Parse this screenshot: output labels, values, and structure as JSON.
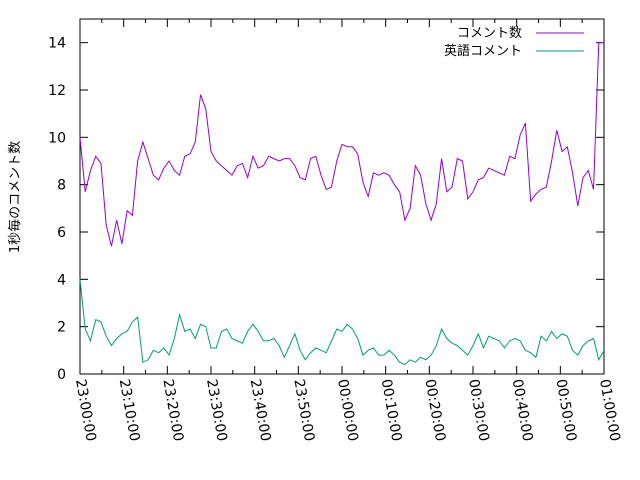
{
  "chart_data": {
    "type": "line",
    "ylabel": "1秒毎のコメント数",
    "ylim": [
      0,
      15
    ],
    "y_ticks": [
      0,
      2,
      4,
      6,
      8,
      10,
      12,
      14
    ],
    "x_tick_labels": [
      "23:00:00",
      "23:10:00",
      "23:20:00",
      "23:30:00",
      "23:40:00",
      "23:50:00",
      "00:00:00",
      "00:10:00",
      "00:20:00",
      "00:30:00",
      "00:40:00",
      "00:50:00",
      "01:00:00"
    ],
    "x_unit_minutes_per_tick": 10,
    "legend_position": "top-right",
    "series": [
      {
        "name": "コメント数",
        "color": "#9400d3",
        "values": [
          10.0,
          7.7,
          8.6,
          9.2,
          8.9,
          6.3,
          5.4,
          6.5,
          5.5,
          6.9,
          6.7,
          9.0,
          9.8,
          9.1,
          8.4,
          8.2,
          8.7,
          9.0,
          8.6,
          8.4,
          9.2,
          9.3,
          9.8,
          11.8,
          11.2,
          9.4,
          9.0,
          8.8,
          8.6,
          8.4,
          8.8,
          8.9,
          8.3,
          9.2,
          8.7,
          8.8,
          9.2,
          9.1,
          9.0,
          9.1,
          9.1,
          8.8,
          8.3,
          8.2,
          9.1,
          9.2,
          8.4,
          7.8,
          7.9,
          9.0,
          9.7,
          9.6,
          9.6,
          9.3,
          8.1,
          7.5,
          8.5,
          8.4,
          8.5,
          8.4,
          8.0,
          7.7,
          6.5,
          7.0,
          8.8,
          8.4,
          7.2,
          6.5,
          7.2,
          9.1,
          7.7,
          7.9,
          9.1,
          9.0,
          7.4,
          7.7,
          8.2,
          8.3,
          8.7,
          8.6,
          8.5,
          8.4,
          9.2,
          9.1,
          10.1,
          10.6,
          7.3,
          7.6,
          7.8,
          7.9,
          9.0,
          10.3,
          9.4,
          9.6,
          8.5,
          7.1,
          8.3,
          8.6,
          7.8,
          14.0,
          14.0
        ]
      },
      {
        "name": "英語コメント",
        "color": "#009e73",
        "values": [
          4.0,
          1.9,
          1.4,
          2.3,
          2.2,
          1.6,
          1.2,
          1.5,
          1.7,
          1.8,
          2.2,
          2.4,
          0.5,
          0.6,
          1.0,
          0.9,
          1.1,
          0.8,
          1.5,
          2.5,
          1.8,
          1.9,
          1.5,
          2.1,
          2.0,
          1.1,
          1.1,
          1.8,
          1.9,
          1.5,
          1.4,
          1.3,
          1.8,
          2.1,
          1.8,
          1.4,
          1.4,
          1.5,
          1.2,
          0.7,
          1.2,
          1.7,
          1.0,
          0.6,
          0.9,
          1.1,
          1.0,
          0.9,
          1.4,
          1.9,
          1.8,
          2.1,
          1.9,
          1.5,
          0.8,
          1.0,
          1.1,
          0.8,
          0.8,
          1.0,
          0.8,
          0.5,
          0.4,
          0.6,
          0.5,
          0.7,
          0.6,
          0.8,
          1.2,
          1.9,
          1.5,
          1.3,
          1.2,
          1.0,
          0.8,
          1.2,
          1.7,
          1.1,
          1.6,
          1.5,
          1.4,
          1.1,
          1.4,
          1.5,
          1.4,
          1.0,
          0.9,
          0.7,
          1.6,
          1.4,
          1.8,
          1.5,
          1.7,
          1.6,
          1.0,
          0.8,
          1.2,
          1.4,
          1.5,
          0.6,
          1.0
        ]
      }
    ]
  }
}
